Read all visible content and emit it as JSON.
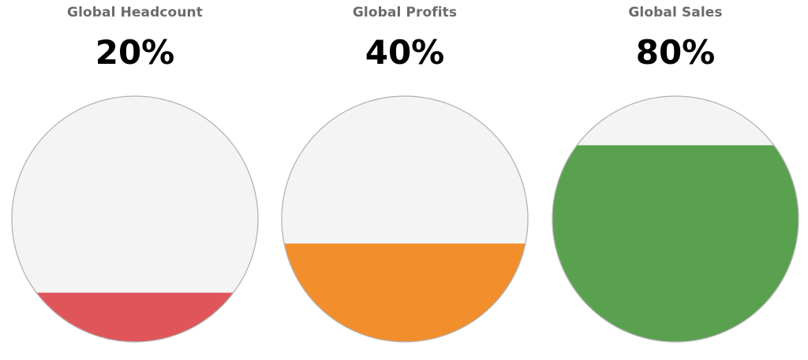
{
  "chart_data": [
    {
      "type": "liquid-fill-gauge",
      "title": "Global Headcount",
      "value_label": "20%",
      "value": 20,
      "max": 100,
      "fill_color": "#e0555a",
      "empty_color": "#f4f4f4",
      "outline_color": "#b3b3b3"
    },
    {
      "type": "liquid-fill-gauge",
      "title": "Global Profits",
      "value_label": "40%",
      "value": 40,
      "max": 100,
      "fill_color": "#f28e2b",
      "empty_color": "#f4f4f4",
      "outline_color": "#b3b3b3"
    },
    {
      "type": "liquid-fill-gauge",
      "title": "Global Sales",
      "value_label": "80%",
      "value": 80,
      "max": 100,
      "fill_color": "#59a14f",
      "empty_color": "#f4f4f4",
      "outline_color": "#b3b3b3"
    }
  ]
}
